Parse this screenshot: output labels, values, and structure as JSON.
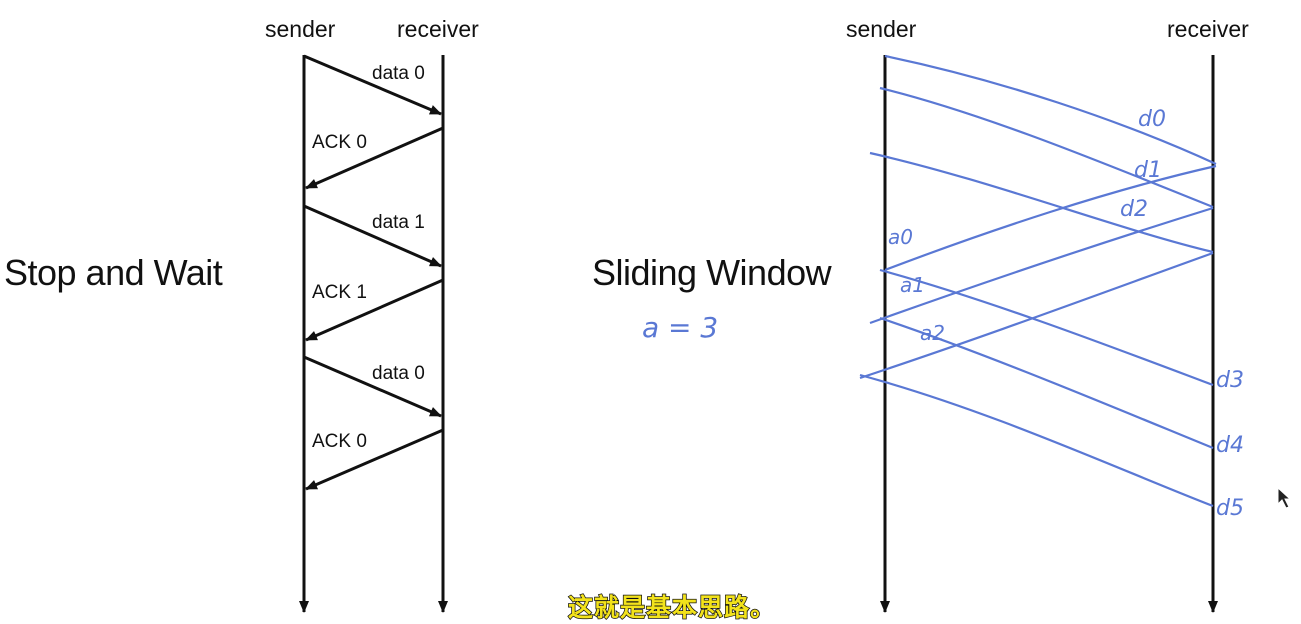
{
  "stop_wait": {
    "title": "Stop and Wait",
    "sender": "sender",
    "receiver": "receiver",
    "messages": [
      "data 0",
      "ACK 0",
      "data 1",
      "ACK 1",
      "data 0",
      "ACK 0"
    ]
  },
  "sliding": {
    "title": "Sliding Window",
    "sender": "sender",
    "receiver": "receiver",
    "note": "a = 3",
    "data_labels": [
      "d0",
      "d1",
      "d2",
      "d3",
      "d4",
      "d5"
    ],
    "ack_labels": [
      "a0",
      "a1",
      "a2"
    ]
  },
  "subtitle": "这就是基本思路。",
  "colors": {
    "ink": "#111111",
    "pen": "#5A78D4",
    "caption": "#F2E21B"
  }
}
